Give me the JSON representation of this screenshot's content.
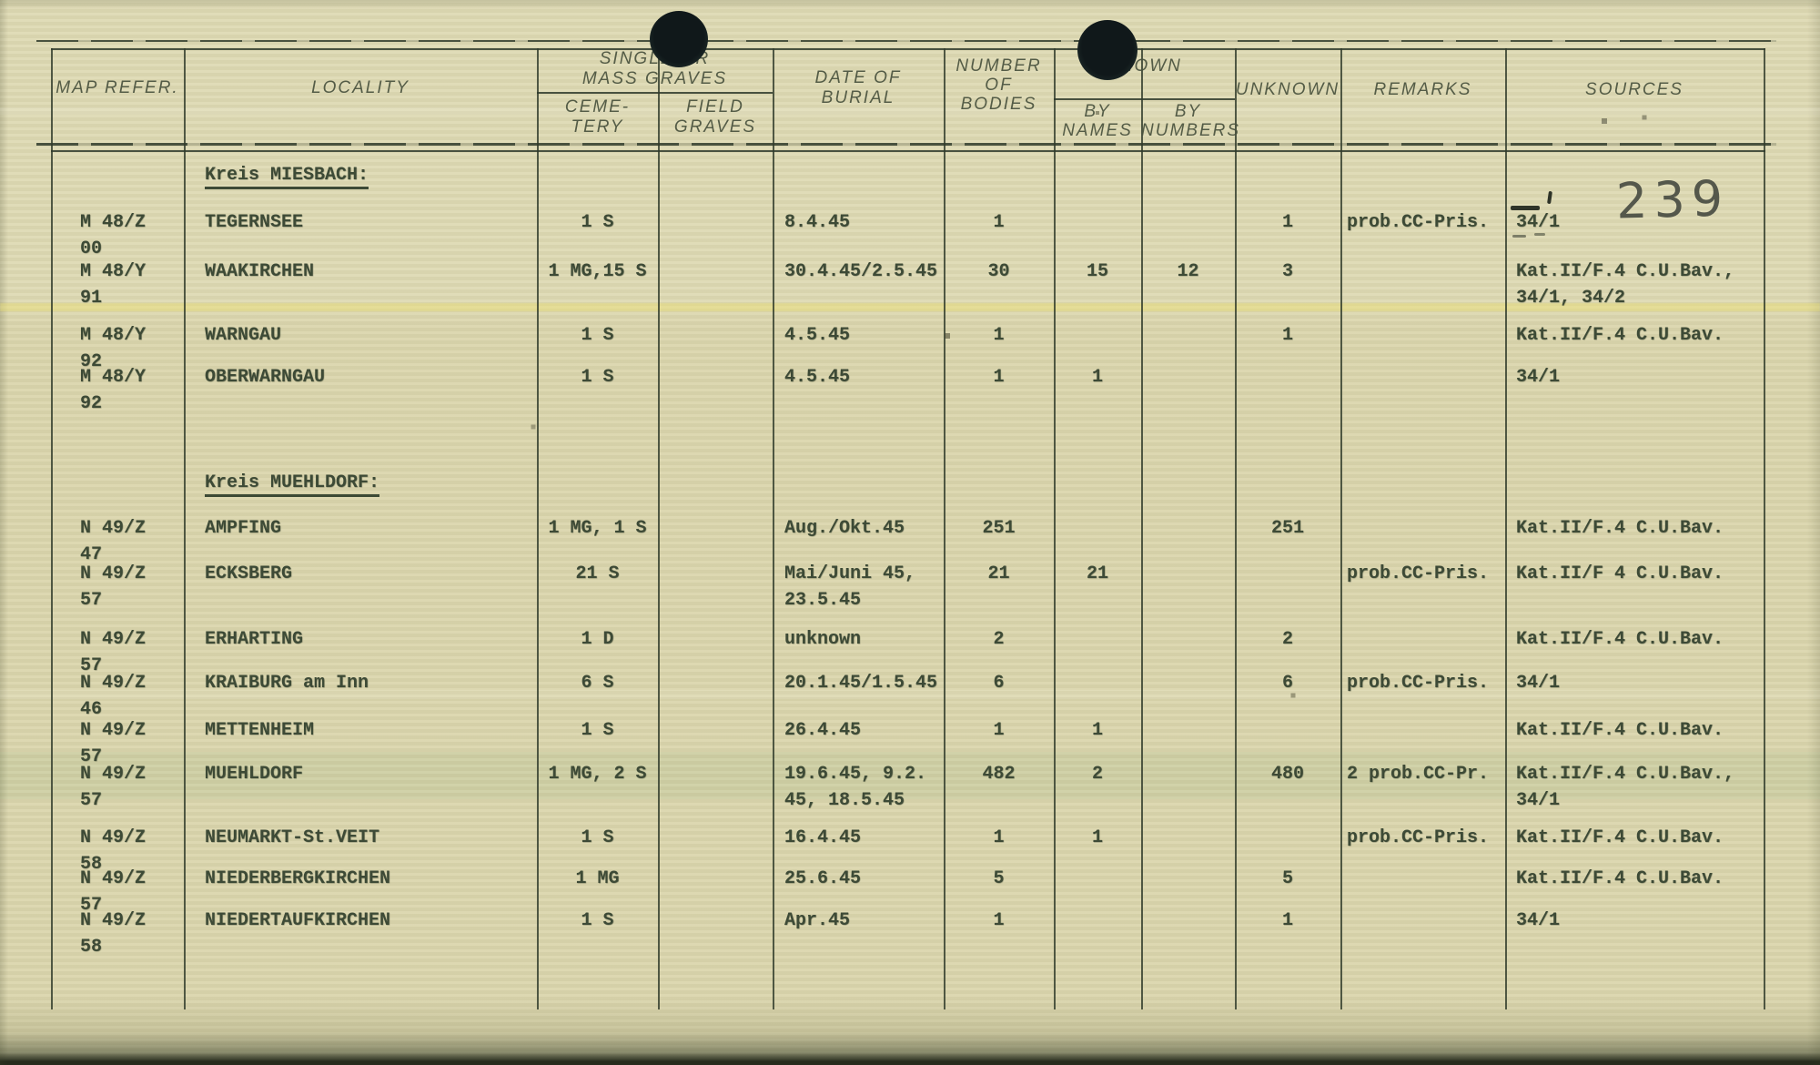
{
  "page": {
    "number": "239",
    "document_type": "burial register table"
  },
  "colors": {
    "paper": "#dbd6ae",
    "typewriter_ink": "#3d4a36",
    "printed_header_ink": "#49523e",
    "table_line": "#2f3a2b",
    "hole_punch": "#10181a",
    "highlight_streak": "#ece06e"
  },
  "table": {
    "headers": {
      "map_refer": "MAP REFER.",
      "locality": "LOCALITY",
      "graves_group": "SINGLE OR\nMASS GRAVES",
      "cemetery": "CEME-\nTERY",
      "field_graves": "FIELD\nGRAVES",
      "date_of_burial": "DATE OF\nBURIAL",
      "number_of_bodies": "NUMBER\nOF\nBODIES",
      "known_group": "KNOWN",
      "by_names": "BY\nNAMES",
      "by_numbers": "BY\nNUMBERS",
      "unknown": "UNKNOWN",
      "remarks": "REMARKS",
      "sources": "SOURCES"
    },
    "sections": [
      {
        "title": "Kreis MIESBACH:",
        "rows": [
          {
            "map_ref": "M 48/Z 00",
            "locality": "TEGERNSEE",
            "cemetery": "1 S",
            "field_graves": "",
            "date": "8.4.45",
            "bodies": "1",
            "by_names": "",
            "by_numbers": "",
            "unknown": "1",
            "remarks": "prob.CC-Pris.",
            "sources": "34/1"
          },
          {
            "map_ref": "M 48/Y 91",
            "locality": "WAAKIRCHEN",
            "cemetery": "1 MG,15 S",
            "field_graves": "",
            "date": "30.4.45/2.5.45",
            "bodies": "30",
            "by_names": "15",
            "by_numbers": "12",
            "unknown": "3",
            "remarks": "",
            "sources": "Kat.II/F.4 C.U.Bav.,\n34/1, 34/2"
          },
          {
            "map_ref": "M 48/Y 92",
            "locality": "WARNGAU",
            "cemetery": "1 S",
            "field_graves": "",
            "date": "4.5.45",
            "bodies": "1",
            "by_names": "",
            "by_numbers": "",
            "unknown": "1",
            "remarks": "",
            "sources": "Kat.II/F.4 C.U.Bav."
          },
          {
            "map_ref": "M 48/Y 92",
            "locality": "OBERWARNGAU",
            "cemetery": "1 S",
            "field_graves": "",
            "date": "4.5.45",
            "bodies": "1",
            "by_names": "1",
            "by_numbers": "",
            "unknown": "",
            "remarks": "",
            "sources": "34/1"
          }
        ]
      },
      {
        "title": "Kreis MUEHLDORF:",
        "rows": [
          {
            "map_ref": "N 49/Z 47",
            "locality": "AMPFING",
            "cemetery": "1 MG, 1 S",
            "field_graves": "",
            "date": "Aug./Okt.45",
            "bodies": "251",
            "by_names": "",
            "by_numbers": "",
            "unknown": "251",
            "remarks": "",
            "sources": "Kat.II/F.4 C.U.Bav."
          },
          {
            "map_ref": "N 49/Z 57",
            "locality": "ECKSBERG",
            "cemetery": "21 S",
            "field_graves": "",
            "date": "Mai/Juni 45,\n23.5.45",
            "bodies": "21",
            "by_names": "21",
            "by_numbers": "",
            "unknown": "",
            "remarks": "prob.CC-Pris.",
            "sources": "Kat.II/F 4 C.U.Bav."
          },
          {
            "map_ref": "N 49/Z 57",
            "locality": "ERHARTING",
            "cemetery": "1 D",
            "field_graves": "",
            "date": "unknown",
            "bodies": "2",
            "by_names": "",
            "by_numbers": "",
            "unknown": "2",
            "remarks": "",
            "sources": "Kat.II/F.4 C.U.Bav."
          },
          {
            "map_ref": "N 49/Z 46",
            "locality": "KRAIBURG am Inn",
            "cemetery": "6 S",
            "field_graves": "",
            "date": "20.1.45/1.5.45",
            "bodies": "6",
            "by_names": "",
            "by_numbers": "",
            "unknown": "6",
            "remarks": "prob.CC-Pris.",
            "sources": "34/1"
          },
          {
            "map_ref": "N 49/Z 57",
            "locality": "METTENHEIM",
            "cemetery": "1 S",
            "field_graves": "",
            "date": "26.4.45",
            "bodies": "1",
            "by_names": "1",
            "by_numbers": "",
            "unknown": "",
            "remarks": "",
            "sources": "Kat.II/F.4 C.U.Bav."
          },
          {
            "map_ref": "N 49/Z 57",
            "locality": "MUEHLDORF",
            "cemetery": "1 MG, 2 S",
            "field_graves": "",
            "date": "19.6.45, 9.2.\n45, 18.5.45",
            "bodies": "482",
            "by_names": "2",
            "by_numbers": "",
            "unknown": "480",
            "remarks": "2 prob.CC-Pr.",
            "sources": "Kat.II/F.4 C.U.Bav.,\n34/1"
          },
          {
            "map_ref": "N 49/Z 58",
            "locality": "NEUMARKT-St.VEIT",
            "cemetery": "1 S",
            "field_graves": "",
            "date": "16.4.45",
            "bodies": "1",
            "by_names": "1",
            "by_numbers": "",
            "unknown": "",
            "remarks": "prob.CC-Pris.",
            "sources": "Kat.II/F.4 C.U.Bav."
          },
          {
            "map_ref": "N 49/Z 57",
            "locality": "NIEDERBERGKIRCHEN",
            "cemetery": "1 MG",
            "field_graves": "",
            "date": "25.6.45",
            "bodies": "5",
            "by_names": "",
            "by_numbers": "",
            "unknown": "5",
            "remarks": "",
            "sources": "Kat.II/F.4 C.U.Bav."
          },
          {
            "map_ref": "N 49/Z 58",
            "locality": "NIEDERTAUFKIRCHEN",
            "cemetery": "1 S",
            "field_graves": "",
            "date": "Apr.45",
            "bodies": "1",
            "by_names": "",
            "by_numbers": "",
            "unknown": "1",
            "remarks": "",
            "sources": "34/1"
          }
        ]
      }
    ]
  }
}
